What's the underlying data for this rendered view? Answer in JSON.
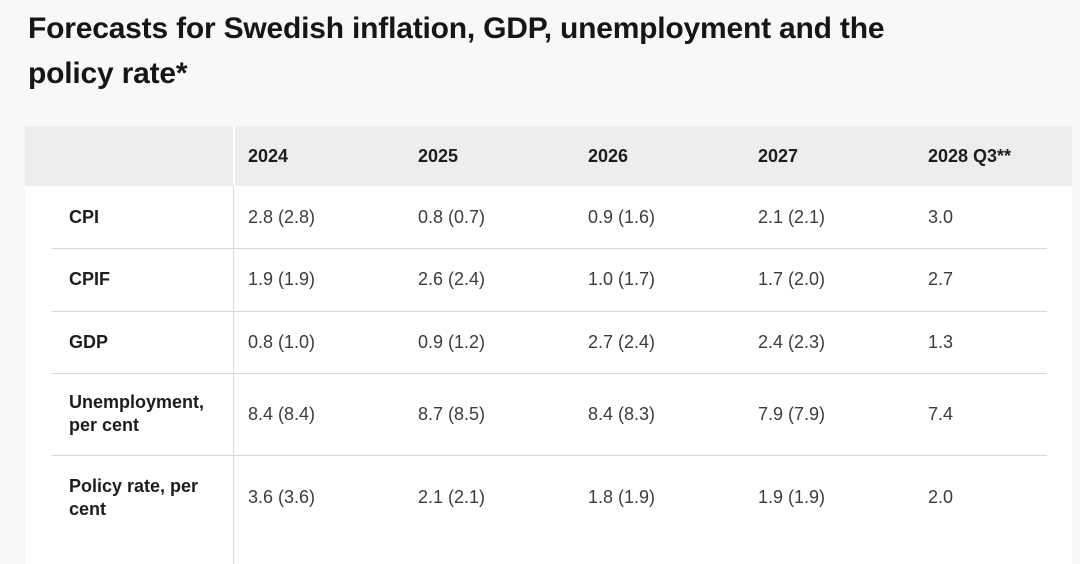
{
  "title": "Forecasts for Swedish inflation, GDP, unemployment and the\npolicy rate*",
  "table": {
    "columns": [
      "",
      "2024",
      "2025",
      "2026",
      "2027",
      "2028 Q3**"
    ],
    "rows": [
      {
        "label": "CPI",
        "values": [
          "2.8 (2.8)",
          "0.8 (0.7)",
          "0.9 (1.6)",
          "2.1 (2.1)",
          "3.0"
        ]
      },
      {
        "label": "CPIF",
        "values": [
          "1.9 (1.9)",
          "2.6 (2.4)",
          "1.0 (1.7)",
          "1.7 (2.0)",
          "2.7"
        ]
      },
      {
        "label": "GDP",
        "values": [
          "0.8 (1.0)",
          "0.9 (1.2)",
          "2.7 (2.4)",
          "2.4 (2.3)",
          "1.3"
        ]
      },
      {
        "label": "Unemployment, per cent",
        "values": [
          "8.4 (8.4)",
          "8.7 (8.5)",
          "8.4 (8.3)",
          "7.9 (7.9)",
          "7.4"
        ]
      },
      {
        "label": "Policy rate, per cent",
        "values": [
          "3.6 (3.6)",
          "2.1 (2.1)",
          "1.8 (1.9)",
          "1.9 (1.9)",
          "2.0"
        ]
      }
    ]
  }
}
